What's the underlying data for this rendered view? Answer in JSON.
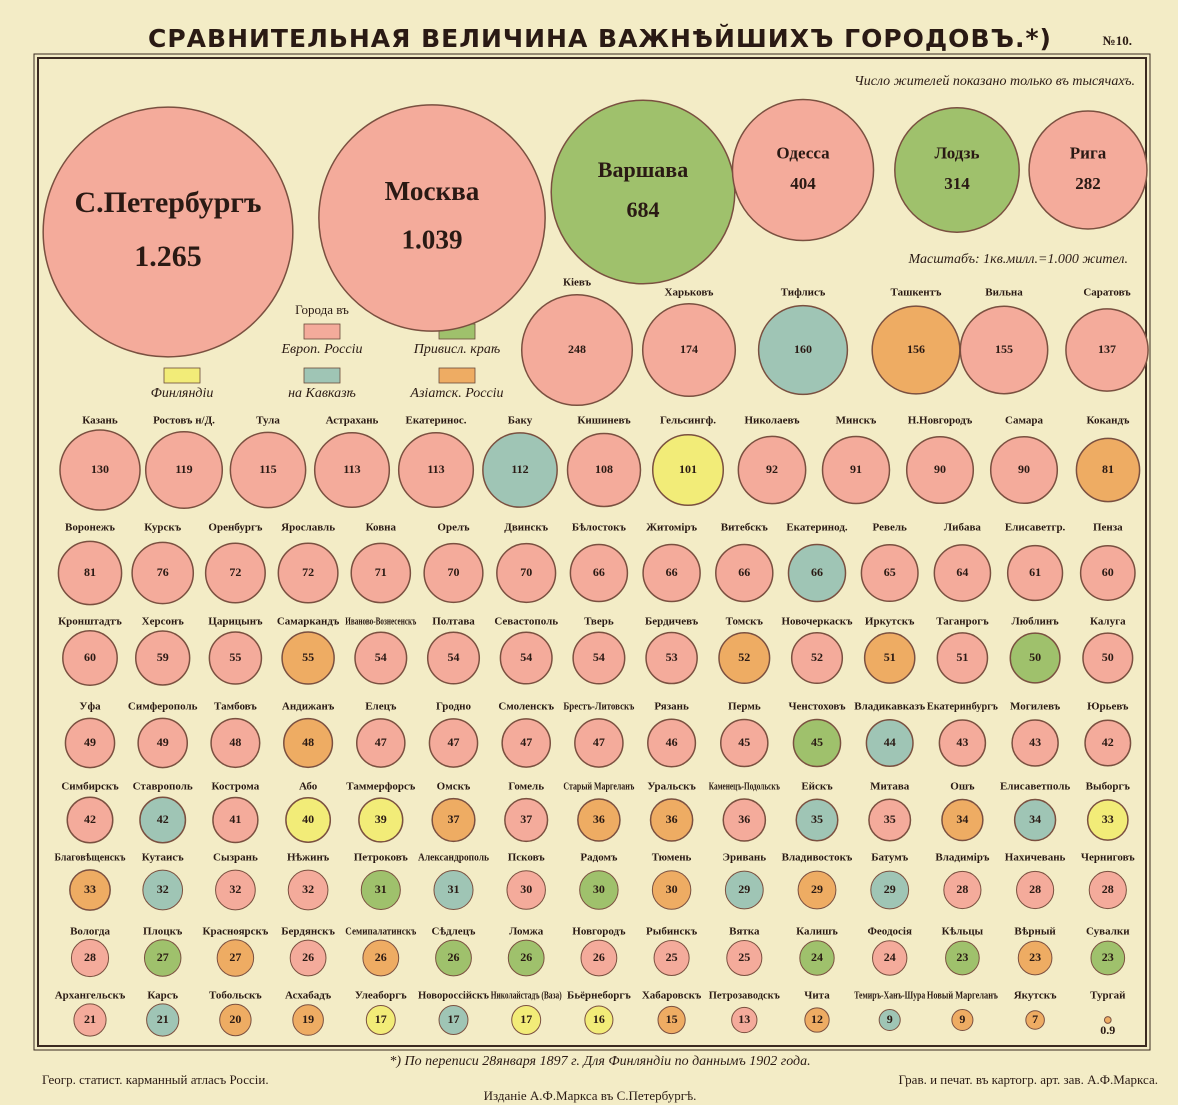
{
  "chart_data": {
    "type": "proportional-circles",
    "title": "СРАВНИТЕЛЬНАЯ ВЕЛИЧИНА ВАЖНѢЙШИХЪ ГОРОДОВЪ.*)",
    "plate": "№10.",
    "note": "Число жителей показано только въ тысячахъ.",
    "scale": "Масштабъ: 1кв.милл.=1.000 жител.",
    "footnote": "*) По переписи 28января 1897 г. Для Финляндіи по даннымъ 1902 года.",
    "credit_left": "Геогр. статист. карманный атласъ Россіи.",
    "credit_right": "Грав. и печат. въ картогр. арт. зав. А.Ф.Маркса.",
    "credit_center": "Изданіе А.Ф.Маркса въ С.Петербургѣ.",
    "legend_title": "Города въ",
    "legend": [
      {
        "label": "Европ. Россіи",
        "color": "#f4ab9b"
      },
      {
        "label": "Привисл. краѣ",
        "color": "#9fc16c"
      },
      {
        "label": "Финляндіи",
        "color": "#f2ec78"
      },
      {
        "label": "на Кавказѣ",
        "color": "#9fc5b5"
      },
      {
        "label": "Азіатск. Россіи",
        "color": "#eeac63"
      }
    ],
    "categories": [
      "С.Петербургъ",
      "Москва",
      "Варшава",
      "Одесса",
      "Лодзь",
      "Рига",
      "Кіевъ",
      "Харьковъ",
      "Тифлисъ",
      "Ташкентъ",
      "Вильна",
      "Саратовъ",
      "Казань",
      "Ростовъ н/Д.",
      "Тула",
      "Астрахань",
      "Екатеринос.",
      "Баку",
      "Кишиневъ",
      "Гельсингф.",
      "Николаевъ",
      "Минскъ",
      "Н.Новгородъ",
      "Самара",
      "Кокандъ",
      "Воронежъ",
      "Курскъ",
      "Оренбургъ",
      "Ярославль",
      "Ковна",
      "Орелъ",
      "Двинскъ",
      "Бѣлостокъ",
      "Житоміръ",
      "Витебскъ",
      "Екатеринод.",
      "Ревель",
      "Либава",
      "Елисаветгр.",
      "Пенза",
      "Кронштадтъ",
      "Херсонъ",
      "Царицынъ",
      "Самаркандъ",
      "Иваново-Вознесенскъ",
      "Полтава",
      "Севастополь",
      "Тверь",
      "Бердичевъ",
      "Томскъ",
      "Новочеркаскъ",
      "Иркутскъ",
      "Таганрогъ",
      "Люблинъ",
      "Калуга",
      "Уфа",
      "Симферополь",
      "Тамбовъ",
      "Андижанъ",
      "Елецъ",
      "Гродно",
      "Смоленскъ",
      "Брестъ-Литовскъ",
      "Рязань",
      "Пермь",
      "Ченстоховъ",
      "Владикавказъ",
      "Екатеринбургъ",
      "Могилевъ",
      "Юрьевъ",
      "Симбирскъ",
      "Ставрополь",
      "Кострома",
      "Або",
      "Таммерфорсъ",
      "Омскъ",
      "Гомель",
      "Старый Маргеланъ",
      "Уральскъ",
      "Каменецъ-Подольскъ",
      "Ейскъ",
      "Митава",
      "Ошъ",
      "Елисаветполь",
      "Выборгъ",
      "Благовѣщенскъ",
      "Кутаисъ",
      "Сызрань",
      "Нѣжинъ",
      "Петроковъ",
      "Александрополь",
      "Псковъ",
      "Радомъ",
      "Тюмень",
      "Эривань",
      "Владивостокъ",
      "Батумъ",
      "Владиміръ",
      "Нахичевань",
      "Черниговъ",
      "Вологда",
      "Плоцкъ",
      "Красноярскъ",
      "Бердянскъ",
      "Семипалатинскъ",
      "Сѣдлецъ",
      "Ломжа",
      "Новгородъ",
      "Рыбинскъ",
      "Вятка",
      "Калишъ",
      "Феодосія",
      "Кѣльцы",
      "Вѣрный",
      "Сувалки",
      "Архангельскъ",
      "Карсъ",
      "Тобольскъ",
      "Асхабадъ",
      "Улеаборгъ",
      "Новороссійскъ",
      "Николайстадъ (Ваза)",
      "Бьёрнеборгъ",
      "Хабаровскъ",
      "Петрозаводскъ",
      "Чита",
      "Темиръ-Ханъ-Шура",
      "Новый Маргеланъ",
      "Якутскъ",
      "Тургай"
    ],
    "values": [
      1265,
      1039,
      684,
      404,
      314,
      282,
      248,
      174,
      160,
      156,
      155,
      137,
      130,
      119,
      115,
      113,
      113,
      112,
      108,
      101,
      92,
      91,
      90,
      90,
      81,
      81,
      76,
      72,
      72,
      71,
      70,
      70,
      66,
      66,
      66,
      66,
      65,
      64,
      61,
      60,
      60,
      59,
      55,
      55,
      54,
      54,
      54,
      54,
      53,
      52,
      52,
      51,
      51,
      50,
      50,
      49,
      49,
      48,
      48,
      47,
      47,
      47,
      47,
      46,
      45,
      45,
      44,
      43,
      43,
      42,
      42,
      42,
      41,
      40,
      39,
      37,
      37,
      36,
      36,
      36,
      35,
      35,
      34,
      34,
      33,
      33,
      32,
      32,
      32,
      31,
      31,
      30,
      30,
      30,
      29,
      29,
      29,
      28,
      28,
      28,
      28,
      27,
      27,
      26,
      26,
      26,
      26,
      26,
      25,
      25,
      24,
      24,
      23,
      23,
      23,
      21,
      21,
      20,
      19,
      17,
      17,
      17,
      16,
      15,
      13,
      12,
      9,
      9,
      7,
      0.9
    ],
    "value_labels": [
      "1.265",
      "1.039",
      "684",
      "404",
      "314",
      "282",
      "248",
      "174",
      "160",
      "156",
      "155",
      "137",
      "130",
      "119",
      "115",
      "113",
      "113",
      "112",
      "108",
      "101",
      "92",
      "91",
      "90",
      "90",
      "81",
      "81",
      "76",
      "72",
      "72",
      "71",
      "70",
      "70",
      "66",
      "66",
      "66",
      "66",
      "65",
      "64",
      "61",
      "60",
      "60",
      "59",
      "55",
      "55",
      "54",
      "54",
      "54",
      "54",
      "53",
      "52",
      "52",
      "51",
      "51",
      "50",
      "50",
      "49",
      "49",
      "48",
      "48",
      "47",
      "47",
      "47",
      "47",
      "46",
      "45",
      "45",
      "44",
      "43",
      "43",
      "42",
      "42",
      "42",
      "41",
      "40",
      "39",
      "37",
      "37",
      "36",
      "36",
      "36",
      "35",
      "35",
      "34",
      "34",
      "33",
      "33",
      "32",
      "32",
      "32",
      "31",
      "31",
      "30",
      "30",
      "30",
      "29",
      "29",
      "29",
      "28",
      "28",
      "28",
      "28",
      "27",
      "27",
      "26",
      "26",
      "26",
      "26",
      "26",
      "25",
      "25",
      "24",
      "24",
      "23",
      "23",
      "23",
      "21",
      "21",
      "20",
      "19",
      "17",
      "17",
      "17",
      "16",
      "15",
      "13",
      "12",
      "9",
      "9",
      "7",
      "0.9"
    ],
    "colors": [
      "#f4ab9b",
      "#f4ab9b",
      "#9fc16c",
      "#f4ab9b",
      "#9fc16c",
      "#f4ab9b",
      "#f4ab9b",
      "#f4ab9b",
      "#9fc5b5",
      "#eeac63",
      "#f4ab9b",
      "#f4ab9b",
      "#f4ab9b",
      "#f4ab9b",
      "#f4ab9b",
      "#f4ab9b",
      "#f4ab9b",
      "#9fc5b5",
      "#f4ab9b",
      "#f2ec78",
      "#f4ab9b",
      "#f4ab9b",
      "#f4ab9b",
      "#f4ab9b",
      "#eeac63",
      "#f4ab9b",
      "#f4ab9b",
      "#f4ab9b",
      "#f4ab9b",
      "#f4ab9b",
      "#f4ab9b",
      "#f4ab9b",
      "#f4ab9b",
      "#f4ab9b",
      "#f4ab9b",
      "#9fc5b5",
      "#f4ab9b",
      "#f4ab9b",
      "#f4ab9b",
      "#f4ab9b",
      "#f4ab9b",
      "#f4ab9b",
      "#f4ab9b",
      "#eeac63",
      "#f4ab9b",
      "#f4ab9b",
      "#f4ab9b",
      "#f4ab9b",
      "#f4ab9b",
      "#eeac63",
      "#f4ab9b",
      "#eeac63",
      "#f4ab9b",
      "#9fc16c",
      "#f4ab9b",
      "#f4ab9b",
      "#f4ab9b",
      "#f4ab9b",
      "#eeac63",
      "#f4ab9b",
      "#f4ab9b",
      "#f4ab9b",
      "#f4ab9b",
      "#f4ab9b",
      "#f4ab9b",
      "#9fc16c",
      "#9fc5b5",
      "#f4ab9b",
      "#f4ab9b",
      "#f4ab9b",
      "#f4ab9b",
      "#9fc5b5",
      "#f4ab9b",
      "#f2ec78",
      "#f2ec78",
      "#eeac63",
      "#f4ab9b",
      "#eeac63",
      "#eeac63",
      "#f4ab9b",
      "#9fc5b5",
      "#f4ab9b",
      "#eeac63",
      "#9fc5b5",
      "#f2ec78",
      "#eeac63",
      "#9fc5b5",
      "#f4ab9b",
      "#f4ab9b",
      "#9fc16c",
      "#9fc5b5",
      "#f4ab9b",
      "#9fc16c",
      "#eeac63",
      "#9fc5b5",
      "#eeac63",
      "#9fc5b5",
      "#f4ab9b",
      "#f4ab9b",
      "#f4ab9b",
      "#f4ab9b",
      "#9fc16c",
      "#eeac63",
      "#f4ab9b",
      "#eeac63",
      "#9fc16c",
      "#9fc16c",
      "#f4ab9b",
      "#f4ab9b",
      "#f4ab9b",
      "#9fc16c",
      "#f4ab9b",
      "#9fc16c",
      "#eeac63",
      "#9fc16c",
      "#f4ab9b",
      "#9fc5b5",
      "#eeac63",
      "#eeac63",
      "#f2ec78",
      "#9fc5b5",
      "#f2ec78",
      "#f2ec78",
      "#eeac63",
      "#f4ab9b",
      "#eeac63",
      "#9fc5b5",
      "#eeac63",
      "#eeac63",
      "#eeac63"
    ]
  }
}
